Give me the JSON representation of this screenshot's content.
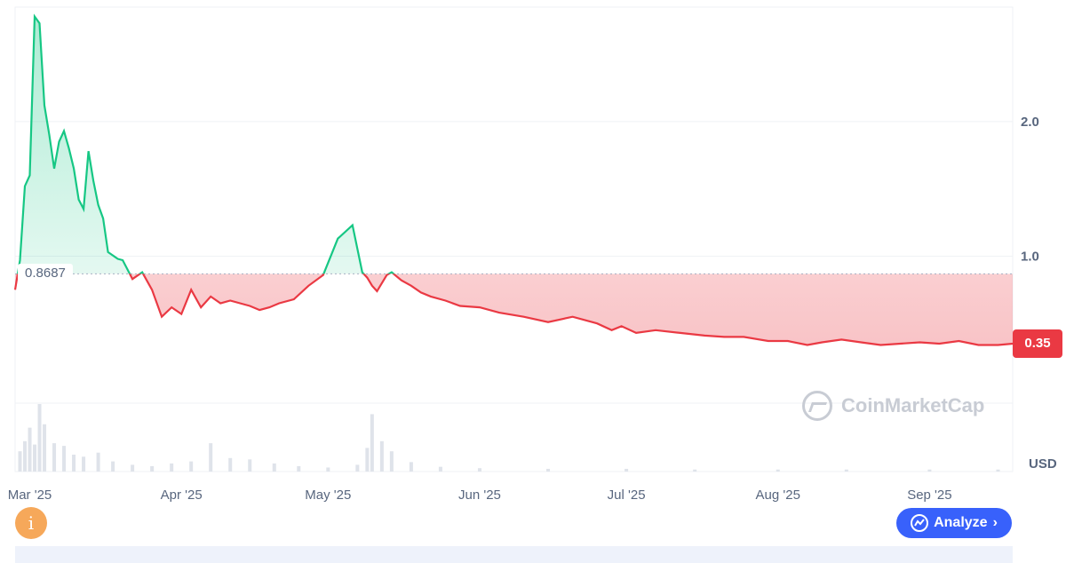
{
  "chart_data": {
    "type": "area",
    "title": "",
    "xlabel": "",
    "ylabel": "USD",
    "currency_label": "USD",
    "baseline": 0.8687,
    "baseline_label": "0.8687",
    "current_price_label": "0.35",
    "ylim": [
      -0.6,
      2.85
    ],
    "yticks": [
      1.0,
      2.0
    ],
    "ytick_labels": [
      "1.0",
      "2.0"
    ],
    "x_ticks": [
      {
        "label": "Mar '25",
        "x": "2025-03-01"
      },
      {
        "label": "Apr '25",
        "x": "2025-04-01"
      },
      {
        "label": "May '25",
        "x": "2025-05-01"
      },
      {
        "label": "Jun '25",
        "x": "2025-06-01"
      },
      {
        "label": "Jul '25",
        "x": "2025-07-01"
      },
      {
        "label": "Aug '25",
        "x": "2025-08-01"
      },
      {
        "label": "Sep '25",
        "x": "2025-09-01"
      }
    ],
    "xlim": [
      "2025-02-26",
      "2025-09-18"
    ],
    "grid": true,
    "colors": {
      "above": "#16c784",
      "below": "#ea3943"
    },
    "series": [
      {
        "x": [
          "2025-02-26",
          "2025-02-27",
          "2025-02-28",
          "2025-03-01",
          "2025-03-02",
          "2025-03-03",
          "2025-03-04",
          "2025-03-05",
          "2025-03-06",
          "2025-03-07",
          "2025-03-08",
          "2025-03-09",
          "2025-03-10",
          "2025-03-11",
          "2025-03-12",
          "2025-03-13",
          "2025-03-14",
          "2025-03-15",
          "2025-03-16",
          "2025-03-17",
          "2025-03-19",
          "2025-03-20",
          "2025-03-22",
          "2025-03-24",
          "2025-03-26",
          "2025-03-28",
          "2025-03-30",
          "2025-04-01",
          "2025-04-03",
          "2025-04-05",
          "2025-04-07",
          "2025-04-09",
          "2025-04-11",
          "2025-04-13",
          "2025-04-15",
          "2025-04-17",
          "2025-04-19",
          "2025-04-21",
          "2025-04-24",
          "2025-04-27",
          "2025-04-30",
          "2025-05-03",
          "2025-05-06",
          "2025-05-08",
          "2025-05-09",
          "2025-05-10",
          "2025-05-11",
          "2025-05-12",
          "2025-05-13",
          "2025-05-14",
          "2025-05-16",
          "2025-05-18",
          "2025-05-20",
          "2025-05-22",
          "2025-05-25",
          "2025-05-28",
          "2025-06-01",
          "2025-06-05",
          "2025-06-10",
          "2025-06-15",
          "2025-06-20",
          "2025-06-25",
          "2025-06-28",
          "2025-06-30",
          "2025-07-03",
          "2025-07-07",
          "2025-07-12",
          "2025-07-17",
          "2025-07-21",
          "2025-07-25",
          "2025-07-30",
          "2025-08-03",
          "2025-08-07",
          "2025-08-10",
          "2025-08-14",
          "2025-08-18",
          "2025-08-22",
          "2025-08-26",
          "2025-08-30",
          "2025-09-03",
          "2025-09-07",
          "2025-09-11",
          "2025-09-15",
          "2025-09-18"
        ],
        "y": [
          0.75,
          0.97,
          1.52,
          1.6,
          2.78,
          2.73,
          2.12,
          1.9,
          1.65,
          1.85,
          1.93,
          1.8,
          1.65,
          1.42,
          1.35,
          1.78,
          1.56,
          1.38,
          1.28,
          1.03,
          0.98,
          0.97,
          0.83,
          0.88,
          0.75,
          0.55,
          0.62,
          0.57,
          0.75,
          0.62,
          0.7,
          0.65,
          0.67,
          0.65,
          0.63,
          0.6,
          0.62,
          0.65,
          0.68,
          0.78,
          0.86,
          1.13,
          1.23,
          0.88,
          0.84,
          0.78,
          0.74,
          0.8,
          0.86,
          0.88,
          0.82,
          0.78,
          0.73,
          0.7,
          0.67,
          0.63,
          0.62,
          0.58,
          0.55,
          0.51,
          0.55,
          0.5,
          0.45,
          0.48,
          0.43,
          0.45,
          0.43,
          0.41,
          0.4,
          0.4,
          0.37,
          0.37,
          0.34,
          0.36,
          0.38,
          0.36,
          0.34,
          0.35,
          0.36,
          0.35,
          0.37,
          0.34,
          0.34,
          0.35
        ]
      }
    ],
    "volume": {
      "x": [
        "2025-02-27",
        "2025-02-28",
        "2025-03-01",
        "2025-03-02",
        "2025-03-03",
        "2025-03-04",
        "2025-03-06",
        "2025-03-08",
        "2025-03-10",
        "2025-03-12",
        "2025-03-15",
        "2025-03-18",
        "2025-03-22",
        "2025-03-26",
        "2025-03-30",
        "2025-04-03",
        "2025-04-07",
        "2025-04-11",
        "2025-04-15",
        "2025-04-20",
        "2025-04-25",
        "2025-05-01",
        "2025-05-07",
        "2025-05-09",
        "2025-05-10",
        "2025-05-12",
        "2025-05-14",
        "2025-05-18",
        "2025-05-24",
        "2025-06-01",
        "2025-06-15",
        "2025-07-01",
        "2025-07-15",
        "2025-08-01",
        "2025-08-15",
        "2025-09-01",
        "2025-09-15"
      ],
      "values": [
        30,
        45,
        65,
        40,
        100,
        70,
        42,
        38,
        25,
        22,
        28,
        15,
        10,
        8,
        12,
        15,
        42,
        20,
        18,
        12,
        8,
        6,
        10,
        35,
        85,
        45,
        30,
        14,
        7,
        5,
        4,
        4,
        3,
        3,
        3,
        3,
        3
      ]
    }
  },
  "ui": {
    "currency_label": "USD",
    "baseline_label": "0.8687",
    "price_badge": "0.35",
    "info_icon": "i",
    "analyze_label": "Analyze",
    "analyze_arrow": "›",
    "analyze_icon": "chart-logo-icon",
    "watermark": "CoinMarketCap",
    "brand_color": "#3861fb",
    "info_color": "#f6a85a"
  }
}
